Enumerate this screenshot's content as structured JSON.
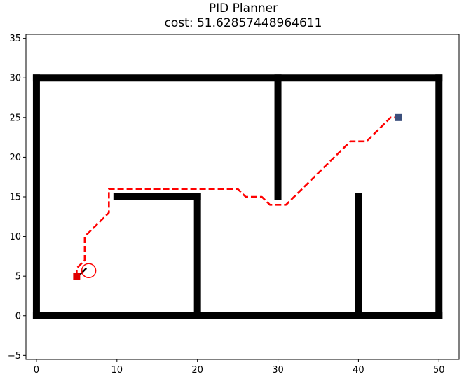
{
  "chart_data": {
    "type": "path-planning-plot",
    "title": "PID Planner",
    "subtitle": "cost: 51.62857448964611",
    "xlim": [
      -1.3,
      52.5
    ],
    "ylim": [
      -5.5,
      35.5
    ],
    "xticks": [
      0,
      10,
      20,
      30,
      40,
      50
    ],
    "yticks": [
      -5,
      0,
      5,
      10,
      15,
      20,
      25,
      30,
      35
    ],
    "grid": false,
    "obstacles": [
      {
        "x": [
          0,
          50
        ],
        "y": [
          0,
          0
        ]
      },
      {
        "x": [
          0,
          50
        ],
        "y": [
          30,
          30
        ]
      },
      {
        "x": [
          0,
          0
        ],
        "y": [
          0,
          30
        ]
      },
      {
        "x": [
          50,
          50
        ],
        "y": [
          0,
          30
        ]
      },
      {
        "x": [
          10,
          20
        ],
        "y": [
          15,
          15
        ]
      },
      {
        "x": [
          20,
          20
        ],
        "y": [
          0,
          15
        ]
      },
      {
        "x": [
          30,
          30
        ],
        "y": [
          15,
          30
        ]
      },
      {
        "x": [
          40,
          40
        ],
        "y": [
          0,
          15
        ]
      }
    ],
    "start": [
      5,
      5
    ],
    "goal": [
      45,
      25
    ],
    "planned_path": {
      "x": [
        5,
        5,
        5.5,
        6,
        6,
        9,
        9,
        25,
        26,
        28,
        29,
        31,
        33,
        35,
        37,
        39,
        40,
        41,
        43,
        44,
        45
      ],
      "y": [
        5,
        6,
        6.5,
        7,
        10,
        13,
        16,
        16,
        15,
        15,
        14,
        14,
        16,
        18,
        20,
        22,
        22,
        22,
        24,
        25,
        25
      ]
    },
    "robot_trajectory": {
      "x": [
        5,
        5.5,
        6.2
      ],
      "y": [
        5,
        5.3,
        6
      ]
    },
    "robot_position": [
      6.5,
      5.7
    ],
    "colors": {
      "obstacle": "#000000",
      "planned_path": "#ff0000",
      "robot": "#ff0000",
      "trajectory": "#000000",
      "start": "#df0000",
      "goal": "#3b4f7c"
    }
  }
}
